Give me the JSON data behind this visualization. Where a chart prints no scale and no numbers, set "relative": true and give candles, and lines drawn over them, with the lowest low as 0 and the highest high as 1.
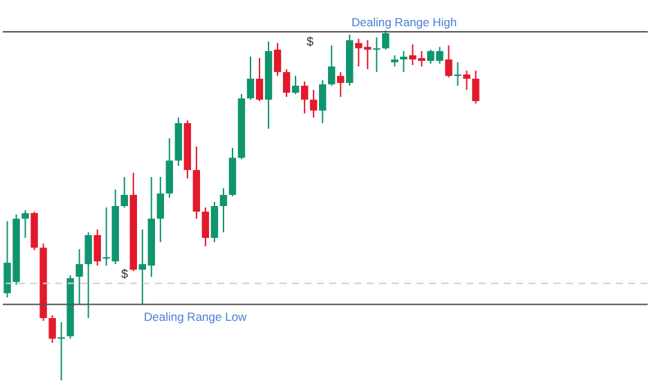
{
  "chart_data": {
    "type": "candlestick",
    "relative": true,
    "categories": [
      null,
      null,
      null,
      null,
      null,
      null,
      null,
      null,
      null,
      null,
      null,
      null,
      null,
      null,
      null,
      null,
      null,
      null,
      null,
      null,
      null,
      null,
      null,
      null,
      null,
      null,
      null,
      null,
      null,
      null,
      null,
      null,
      null,
      null,
      null,
      null,
      null,
      null,
      null,
      null,
      null,
      null,
      null,
      null,
      null,
      null,
      null,
      null,
      null,
      null,
      null,
      null,
      null
    ],
    "ohlc": [
      [
        0.249,
        0.455,
        0.237,
        0.336
      ],
      [
        0.281,
        0.474,
        0.273,
        0.462
      ],
      [
        0.462,
        0.486,
        0.407,
        0.478
      ],
      [
        0.478,
        0.482,
        0.372,
        0.379
      ],
      [
        0.379,
        0.391,
        0.17,
        0.178
      ],
      [
        0.178,
        0.186,
        0.107,
        0.119
      ],
      [
        0.119,
        0.166,
        0,
        0.123
      ],
      [
        0.126,
        0.3,
        0.119,
        0.292
      ],
      [
        0.296,
        0.375,
        0.217,
        0.332
      ],
      [
        0.332,
        0.423,
        0.178,
        0.415
      ],
      [
        0.415,
        0.431,
        0.328,
        0.34
      ],
      [
        0.348,
        0.494,
        0.328,
        0.352
      ],
      [
        0.34,
        0.545,
        0.332,
        0.498
      ],
      [
        0.498,
        0.581,
        0.494,
        0.53
      ],
      [
        0.53,
        0.593,
        0.312,
        0.316
      ],
      [
        0.316,
        0.431,
        0.217,
        0.332
      ],
      [
        0.328,
        0.581,
        0.296,
        0.462
      ],
      [
        0.462,
        0.581,
        0.395,
        0.534
      ],
      [
        0.534,
        0.692,
        0.522,
        0.628
      ],
      [
        0.628,
        0.751,
        0.613,
        0.735
      ],
      [
        0.735,
        0.743,
        0.577,
        0.601
      ],
      [
        0.601,
        0.668,
        0.462,
        0.482
      ],
      [
        0.482,
        0.494,
        0.383,
        0.407
      ],
      [
        0.407,
        0.51,
        0.395,
        0.498
      ],
      [
        0.498,
        0.549,
        0.423,
        0.53
      ],
      [
        0.53,
        0.664,
        0.526,
        0.636
      ],
      [
        0.636,
        0.818,
        0.632,
        0.806
      ],
      [
        0.806,
        0.925,
        0.802,
        0.862
      ],
      [
        0.862,
        0.921,
        0.798,
        0.802
      ],
      [
        0.802,
        0.968,
        0.719,
        0.941
      ],
      [
        0.945,
        0.964,
        0.87,
        0.881
      ],
      [
        0.881,
        0.889,
        0.81,
        0.822
      ],
      [
        0.822,
        0.87,
        0.818,
        0.842
      ],
      [
        0.842,
        0.854,
        0.763,
        0.802
      ],
      [
        0.802,
        0.83,
        0.751,
        0.771
      ],
      [
        0.771,
        0.858,
        0.735,
        0.846
      ],
      [
        0.846,
        0.957,
        0.842,
        0.897
      ],
      [
        0.87,
        0.881,
        0.81,
        0.85
      ],
      [
        0.85,
        0.988,
        0.842,
        0.972
      ],
      [
        0.964,
        0.976,
        0.897,
        0.949
      ],
      [
        0.953,
        0.972,
        0.889,
        0.945
      ],
      [
        0.945,
        0.98,
        0.881,
        0.949
      ],
      [
        0.949,
        1,
        0.945,
        0.992
      ],
      [
        0.909,
        0.929,
        0.897,
        0.917
      ],
      [
        0.917,
        0.941,
        0.881,
        0.925
      ],
      [
        0.929,
        0.96,
        0.901,
        0.917
      ],
      [
        0.921,
        0.941,
        0.897,
        0.913
      ],
      [
        0.913,
        0.945,
        0.905,
        0.941
      ],
      [
        0.913,
        0.953,
        0.905,
        0.941
      ],
      [
        0.917,
        0.957,
        0.866,
        0.87
      ],
      [
        0.87,
        0.909,
        0.842,
        0.874
      ],
      [
        0.874,
        0.885,
        0.83,
        0.862
      ],
      [
        0.862,
        0.885,
        0.791,
        0.798
      ]
    ],
    "colors": [
      "#10956e",
      "#10956e",
      "#10956e",
      "#e3192c",
      "#e3192c",
      "#e3192c",
      "#10956e",
      "#10956e",
      "#10956e",
      "#10956e",
      "#e3192c",
      "#10956e",
      "#10956e",
      "#10956e",
      "#e3192c",
      "#10956e",
      "#10956e",
      "#10956e",
      "#10956e",
      "#10956e",
      "#e3192c",
      "#e3192c",
      "#e3192c",
      "#10956e",
      "#10956e",
      "#10956e",
      "#10956e",
      "#10956e",
      "#e3192c",
      "#10956e",
      "#e3192c",
      "#e3192c",
      "#10956e",
      "#e3192c",
      "#e3192c",
      "#10956e",
      "#10956e",
      "#e3192c",
      "#10956e",
      "#e3192c",
      "#e3192c",
      "#10956e",
      "#10956e",
      "#10956e",
      "#10956e",
      "#e3192c",
      "#e3192c",
      "#10956e",
      "#10956e",
      "#e3192c",
      "#10956e",
      "#e3192c",
      "#e3192c"
    ],
    "ref_lines": [
      {
        "axis": "y",
        "value": 0.996,
        "label": "Dealing Range High",
        "color": "#555555"
      },
      {
        "axis": "y",
        "value": 0.217,
        "label": "Dealing Range Low",
        "color": "#555555"
      },
      {
        "axis": "y",
        "value": 0.277,
        "label": null,
        "color": "#d0d0d0",
        "line_style": "dashed"
      }
    ],
    "annotations": [
      "$",
      "$"
    ]
  }
}
